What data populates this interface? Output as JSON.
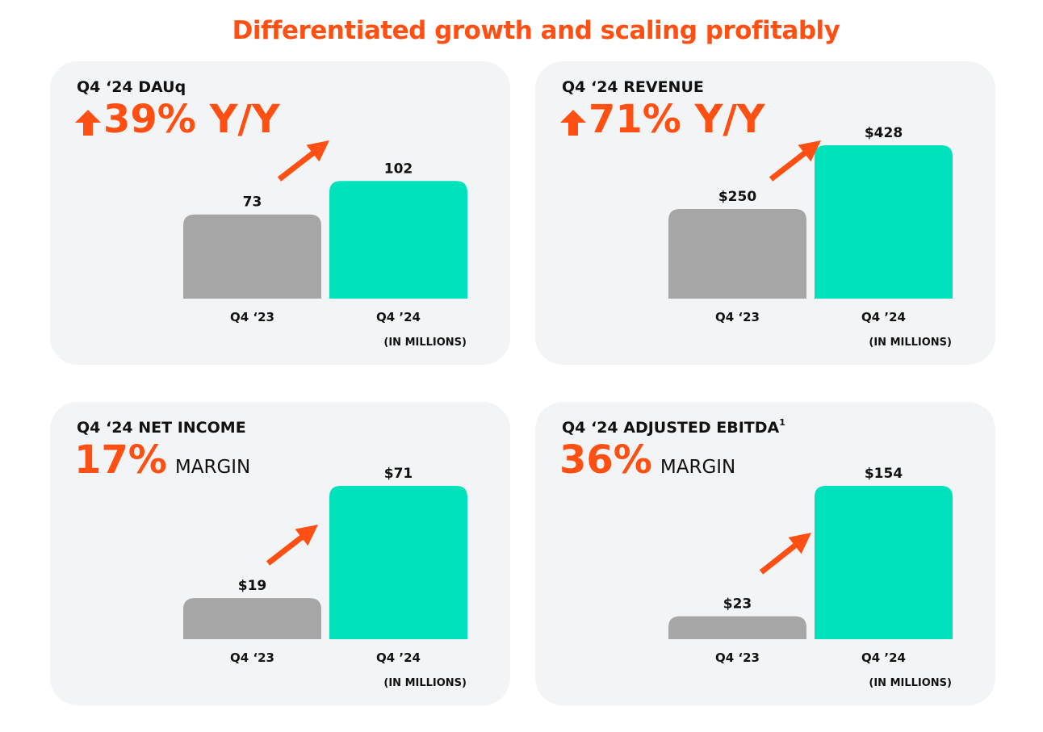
{
  "page": {
    "title": "Differentiated growth and scaling profitably"
  },
  "colors": {
    "accent": "#FF4F12",
    "prior_bar": "#A6A6A6",
    "current_bar": "#00E2BC",
    "panel_bg": "#F2F4F5"
  },
  "panels": [
    {
      "metric": "Q4 ‘24 DAUq",
      "headline_value": "39% Y/Y",
      "unit": "(IN MILLIONS)"
    },
    {
      "metric": "Q4 ‘24 REVENUE",
      "headline_value": "71% Y/Y",
      "unit": "(IN MILLIONS)"
    },
    {
      "metric": "Q4 ‘24 NET INCOME",
      "headline_value": "17%",
      "headline_suffix": "MARGIN",
      "unit": "(IN MILLIONS)"
    },
    {
      "metric": "Q4 ‘24 ADJUSTED EBITDA",
      "metric_footnote": "1",
      "headline_value": "36%",
      "headline_suffix": "MARGIN",
      "unit": "(IN MILLIONS)"
    }
  ],
  "chart_data": [
    {
      "type": "bar",
      "title": "Q4 ‘24 DAUq",
      "categories": [
        "Q4 ‘23",
        "Q4 ’24"
      ],
      "values": [
        73,
        102
      ],
      "value_labels": [
        "73",
        "102"
      ],
      "ylabel": "(IN MILLIONS)",
      "ylim": [
        0,
        133
      ]
    },
    {
      "type": "bar",
      "title": "Q4 ‘24 REVENUE",
      "categories": [
        "Q4 ‘23",
        "Q4 ’24"
      ],
      "values": [
        250,
        428
      ],
      "value_labels": [
        "$250",
        "$428"
      ],
      "ylabel": "(IN MILLIONS)",
      "ylim": [
        0,
        428
      ]
    },
    {
      "type": "bar",
      "title": "Q4 ‘24 NET INCOME",
      "categories": [
        "Q4 ‘23",
        "Q4 ’24"
      ],
      "values": [
        19,
        71
      ],
      "value_labels": [
        "$19",
        "$71"
      ],
      "ylabel": "(IN MILLIONS)",
      "ylim": [
        0,
        71
      ]
    },
    {
      "type": "bar",
      "title": "Q4 ‘24 ADJUSTED EBITDA",
      "categories": [
        "Q4 ‘23",
        "Q4 ’24"
      ],
      "values": [
        23,
        154
      ],
      "value_labels": [
        "$23",
        "$154"
      ],
      "ylabel": "(IN MILLIONS)",
      "ylim": [
        0,
        154
      ]
    }
  ]
}
